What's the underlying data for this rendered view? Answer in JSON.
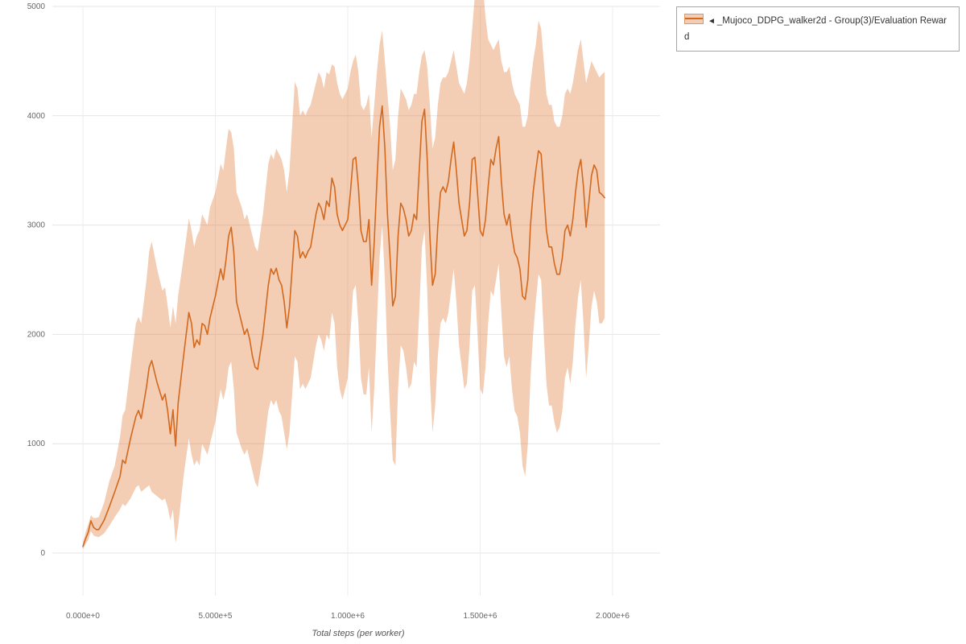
{
  "legend": {
    "collapse_icon": "◄",
    "label": "_Mujoco_DDPG_walker2d - Group(3)/Evaluation Reward"
  },
  "chart_data": {
    "type": "line",
    "title": "",
    "xlabel": "Total steps (per worker)",
    "ylabel": "",
    "x_unit_note": "x values in millions of steps",
    "ylim": [
      0,
      5000
    ],
    "xlim": [
      0,
      2000000
    ],
    "grid": true,
    "legend_position": "top-right",
    "x_ticks": [
      {
        "v": 0.0,
        "label": "0.000e+0"
      },
      {
        "v": 0.5,
        "label": "5.000e+5"
      },
      {
        "v": 1.0,
        "label": "1.000e+6"
      },
      {
        "v": 1.5,
        "label": "1.500e+6"
      },
      {
        "v": 2.0,
        "label": "2.000e+6"
      }
    ],
    "y_ticks": [
      {
        "v": 0,
        "label": "0"
      },
      {
        "v": 1000,
        "label": "1000"
      },
      {
        "v": 2000,
        "label": "2000"
      },
      {
        "v": 3000,
        "label": "3000"
      },
      {
        "v": 4000,
        "label": "4000"
      },
      {
        "v": 5000,
        "label": "5000"
      }
    ],
    "series": [
      {
        "name": "_Mujoco_DDPG_walker2d - Group(3)/Evaluation Reward",
        "color": "#d2691e",
        "band_color": "#e07b39",
        "band_opacity": 0.38,
        "points_format": [
          "x_e6",
          "lower",
          "mean",
          "upper"
        ],
        "points": [
          [
            0.0,
            35,
            60,
            95
          ],
          [
            0.01,
            80,
            130,
            190
          ],
          [
            0.02,
            120,
            190,
            260
          ],
          [
            0.03,
            200,
            295,
            345
          ],
          [
            0.04,
            160,
            235,
            320
          ],
          [
            0.05,
            150,
            215,
            320
          ],
          [
            0.06,
            145,
            215,
            330
          ],
          [
            0.08,
            180,
            300,
            460
          ],
          [
            0.1,
            250,
            425,
            660
          ],
          [
            0.12,
            330,
            560,
            800
          ],
          [
            0.14,
            400,
            700,
            1060
          ],
          [
            0.15,
            450,
            850,
            1260
          ],
          [
            0.16,
            430,
            820,
            1310
          ],
          [
            0.18,
            500,
            1050,
            1710
          ],
          [
            0.2,
            600,
            1250,
            2100
          ],
          [
            0.21,
            620,
            1305,
            2160
          ],
          [
            0.22,
            560,
            1230,
            2100
          ],
          [
            0.24,
            600,
            1520,
            2500
          ],
          [
            0.25,
            620,
            1700,
            2760
          ],
          [
            0.26,
            560,
            1760,
            2850
          ],
          [
            0.28,
            520,
            1560,
            2600
          ],
          [
            0.3,
            480,
            1400,
            2400
          ],
          [
            0.31,
            500,
            1455,
            2430
          ],
          [
            0.32,
            420,
            1300,
            2260
          ],
          [
            0.33,
            300,
            1090,
            2060
          ],
          [
            0.34,
            400,
            1310,
            2260
          ],
          [
            0.35,
            90,
            980,
            2100
          ],
          [
            0.36,
            250,
            1380,
            2360
          ],
          [
            0.38,
            700,
            1800,
            2700
          ],
          [
            0.4,
            1050,
            2200,
            3060
          ],
          [
            0.41,
            900,
            2100,
            2950
          ],
          [
            0.42,
            800,
            1880,
            2800
          ],
          [
            0.43,
            850,
            1950,
            2900
          ],
          [
            0.44,
            800,
            1905,
            2950
          ],
          [
            0.45,
            1000,
            2100,
            3100
          ],
          [
            0.46,
            950,
            2080,
            3050
          ],
          [
            0.47,
            900,
            2000,
            3000
          ],
          [
            0.48,
            1000,
            2150,
            3160
          ],
          [
            0.5,
            1200,
            2350,
            3300
          ],
          [
            0.52,
            1500,
            2600,
            3560
          ],
          [
            0.53,
            1400,
            2500,
            3500
          ],
          [
            0.54,
            1500,
            2680,
            3700
          ],
          [
            0.55,
            1700,
            2900,
            3880
          ],
          [
            0.56,
            1750,
            2980,
            3850
          ],
          [
            0.57,
            1500,
            2750,
            3700
          ],
          [
            0.58,
            1100,
            2300,
            3300
          ],
          [
            0.6,
            950,
            2100,
            3160
          ],
          [
            0.61,
            900,
            2000,
            3050
          ],
          [
            0.62,
            950,
            2050,
            3100
          ],
          [
            0.63,
            850,
            1950,
            3000
          ],
          [
            0.64,
            750,
            1800,
            2900
          ],
          [
            0.65,
            650,
            1700,
            2800
          ],
          [
            0.66,
            600,
            1680,
            2760
          ],
          [
            0.68,
            900,
            2000,
            3100
          ],
          [
            0.7,
            1300,
            2450,
            3560
          ],
          [
            0.71,
            1400,
            2600,
            3650
          ],
          [
            0.72,
            1350,
            2550,
            3600
          ],
          [
            0.73,
            1400,
            2605,
            3700
          ],
          [
            0.74,
            1300,
            2500,
            3650
          ],
          [
            0.75,
            1250,
            2450,
            3600
          ],
          [
            0.76,
            1100,
            2300,
            3500
          ],
          [
            0.77,
            950,
            2060,
            3300
          ],
          [
            0.78,
            1100,
            2250,
            3500
          ],
          [
            0.8,
            1800,
            2950,
            4310
          ],
          [
            0.81,
            1750,
            2900,
            4250
          ],
          [
            0.82,
            1500,
            2700,
            4000
          ],
          [
            0.83,
            1550,
            2755,
            4050
          ],
          [
            0.84,
            1500,
            2700,
            4000
          ],
          [
            0.85,
            1550,
            2760,
            4060
          ],
          [
            0.86,
            1600,
            2800,
            4100
          ],
          [
            0.88,
            1900,
            3100,
            4300
          ],
          [
            0.89,
            2000,
            3200,
            4400
          ],
          [
            0.9,
            1950,
            3150,
            4350
          ],
          [
            0.91,
            1850,
            3050,
            4250
          ],
          [
            0.92,
            2000,
            3220,
            4400
          ],
          [
            0.93,
            1950,
            3170,
            4380
          ],
          [
            0.94,
            2200,
            3430,
            4470
          ],
          [
            0.95,
            2100,
            3350,
            4450
          ],
          [
            0.96,
            1700,
            3100,
            4300
          ],
          [
            0.97,
            1500,
            3000,
            4200
          ],
          [
            0.98,
            1400,
            2950,
            4150
          ],
          [
            1.0,
            1600,
            3050,
            4250
          ],
          [
            1.01,
            2000,
            3300,
            4400
          ],
          [
            1.02,
            2400,
            3600,
            4500
          ],
          [
            1.03,
            2450,
            3620,
            4560
          ],
          [
            1.04,
            2100,
            3350,
            4400
          ],
          [
            1.05,
            1600,
            2950,
            4100
          ],
          [
            1.06,
            1450,
            2850,
            4050
          ],
          [
            1.07,
            1450,
            2850,
            4100
          ],
          [
            1.08,
            1700,
            3050,
            4200
          ],
          [
            1.09,
            1100,
            2450,
            3800
          ],
          [
            1.1,
            1500,
            2850,
            4100
          ],
          [
            1.11,
            2100,
            3400,
            4400
          ],
          [
            1.12,
            2700,
            3900,
            4650
          ],
          [
            1.13,
            3000,
            4090,
            4780
          ],
          [
            1.14,
            2500,
            3700,
            4500
          ],
          [
            1.15,
            1800,
            3100,
            4200
          ],
          [
            1.16,
            1300,
            2700,
            3900
          ],
          [
            1.17,
            850,
            2260,
            3500
          ],
          [
            1.18,
            800,
            2350,
            3600
          ],
          [
            1.19,
            1500,
            2900,
            4000
          ],
          [
            1.2,
            1900,
            3200,
            4250
          ],
          [
            1.21,
            1850,
            3150,
            4200
          ],
          [
            1.22,
            1700,
            3050,
            4150
          ],
          [
            1.23,
            1500,
            2900,
            4050
          ],
          [
            1.24,
            1550,
            2950,
            4100
          ],
          [
            1.25,
            1750,
            3100,
            4200
          ],
          [
            1.26,
            1700,
            3050,
            4200
          ],
          [
            1.27,
            2200,
            3500,
            4400
          ],
          [
            1.28,
            2800,
            3950,
            4550
          ],
          [
            1.29,
            2950,
            4060,
            4600
          ],
          [
            1.3,
            2400,
            3600,
            4450
          ],
          [
            1.31,
            1600,
            2900,
            4100
          ],
          [
            1.32,
            1100,
            2450,
            3700
          ],
          [
            1.33,
            1350,
            2550,
            3800
          ],
          [
            1.34,
            1800,
            3000,
            4100
          ],
          [
            1.35,
            2100,
            3300,
            4300
          ],
          [
            1.36,
            2150,
            3350,
            4350
          ],
          [
            1.37,
            2100,
            3300,
            4350
          ],
          [
            1.38,
            2200,
            3400,
            4400
          ],
          [
            1.39,
            2400,
            3600,
            4500
          ],
          [
            1.4,
            2600,
            3760,
            4600
          ],
          [
            1.41,
            2300,
            3500,
            4450
          ],
          [
            1.42,
            1900,
            3200,
            4300
          ],
          [
            1.43,
            1700,
            3050,
            4250
          ],
          [
            1.44,
            1500,
            2900,
            4200
          ],
          [
            1.45,
            1550,
            2950,
            4300
          ],
          [
            1.46,
            1900,
            3200,
            4500
          ],
          [
            1.47,
            2400,
            3600,
            4800
          ],
          [
            1.48,
            2450,
            3620,
            5100
          ],
          [
            1.49,
            2000,
            3300,
            5250
          ],
          [
            1.5,
            1500,
            2950,
            5300
          ],
          [
            1.51,
            1450,
            2900,
            5200
          ],
          [
            1.52,
            1700,
            3050,
            4900
          ],
          [
            1.53,
            2100,
            3350,
            4700
          ],
          [
            1.54,
            2400,
            3600,
            4650
          ],
          [
            1.55,
            2350,
            3550,
            4600
          ],
          [
            1.56,
            2500,
            3700,
            4650
          ],
          [
            1.57,
            2650,
            3810,
            4700
          ],
          [
            1.58,
            2200,
            3400,
            4500
          ],
          [
            1.59,
            1800,
            3100,
            4400
          ],
          [
            1.6,
            1700,
            3000,
            4400
          ],
          [
            1.61,
            1800,
            3100,
            4450
          ],
          [
            1.62,
            1500,
            2900,
            4300
          ],
          [
            1.63,
            1300,
            2750,
            4200
          ],
          [
            1.64,
            1250,
            2700,
            4150
          ],
          [
            1.65,
            1100,
            2600,
            4100
          ],
          [
            1.66,
            800,
            2350,
            3900
          ],
          [
            1.67,
            700,
            2320,
            3900
          ],
          [
            1.68,
            1000,
            2500,
            4000
          ],
          [
            1.69,
            1600,
            3000,
            4300
          ],
          [
            1.7,
            2000,
            3300,
            4500
          ],
          [
            1.71,
            2300,
            3500,
            4650
          ],
          [
            1.72,
            2550,
            3680,
            4870
          ],
          [
            1.73,
            2500,
            3650,
            4800
          ],
          [
            1.74,
            2000,
            3300,
            4500
          ],
          [
            1.75,
            1550,
            2950,
            4200
          ],
          [
            1.76,
            1350,
            2800,
            4100
          ],
          [
            1.77,
            1350,
            2800,
            4100
          ],
          [
            1.78,
            1200,
            2650,
            3950
          ],
          [
            1.79,
            1100,
            2550,
            3900
          ],
          [
            1.8,
            1150,
            2550,
            3900
          ],
          [
            1.81,
            1300,
            2700,
            4000
          ],
          [
            1.82,
            1600,
            2950,
            4200
          ],
          [
            1.83,
            1700,
            3000,
            4250
          ],
          [
            1.84,
            1550,
            2900,
            4200
          ],
          [
            1.85,
            1750,
            3050,
            4300
          ],
          [
            1.86,
            2100,
            3300,
            4450
          ],
          [
            1.87,
            2350,
            3500,
            4600
          ],
          [
            1.88,
            2500,
            3600,
            4700
          ],
          [
            1.89,
            2100,
            3350,
            4500
          ],
          [
            1.9,
            1600,
            2980,
            4300
          ],
          [
            1.91,
            1900,
            3200,
            4400
          ],
          [
            1.92,
            2250,
            3450,
            4500
          ],
          [
            1.93,
            2400,
            3550,
            4450
          ],
          [
            1.94,
            2300,
            3500,
            4400
          ],
          [
            1.95,
            2100,
            3300,
            4350
          ],
          [
            1.96,
            2100,
            3280,
            4380
          ],
          [
            1.97,
            2150,
            3250,
            4400
          ]
        ]
      }
    ]
  }
}
